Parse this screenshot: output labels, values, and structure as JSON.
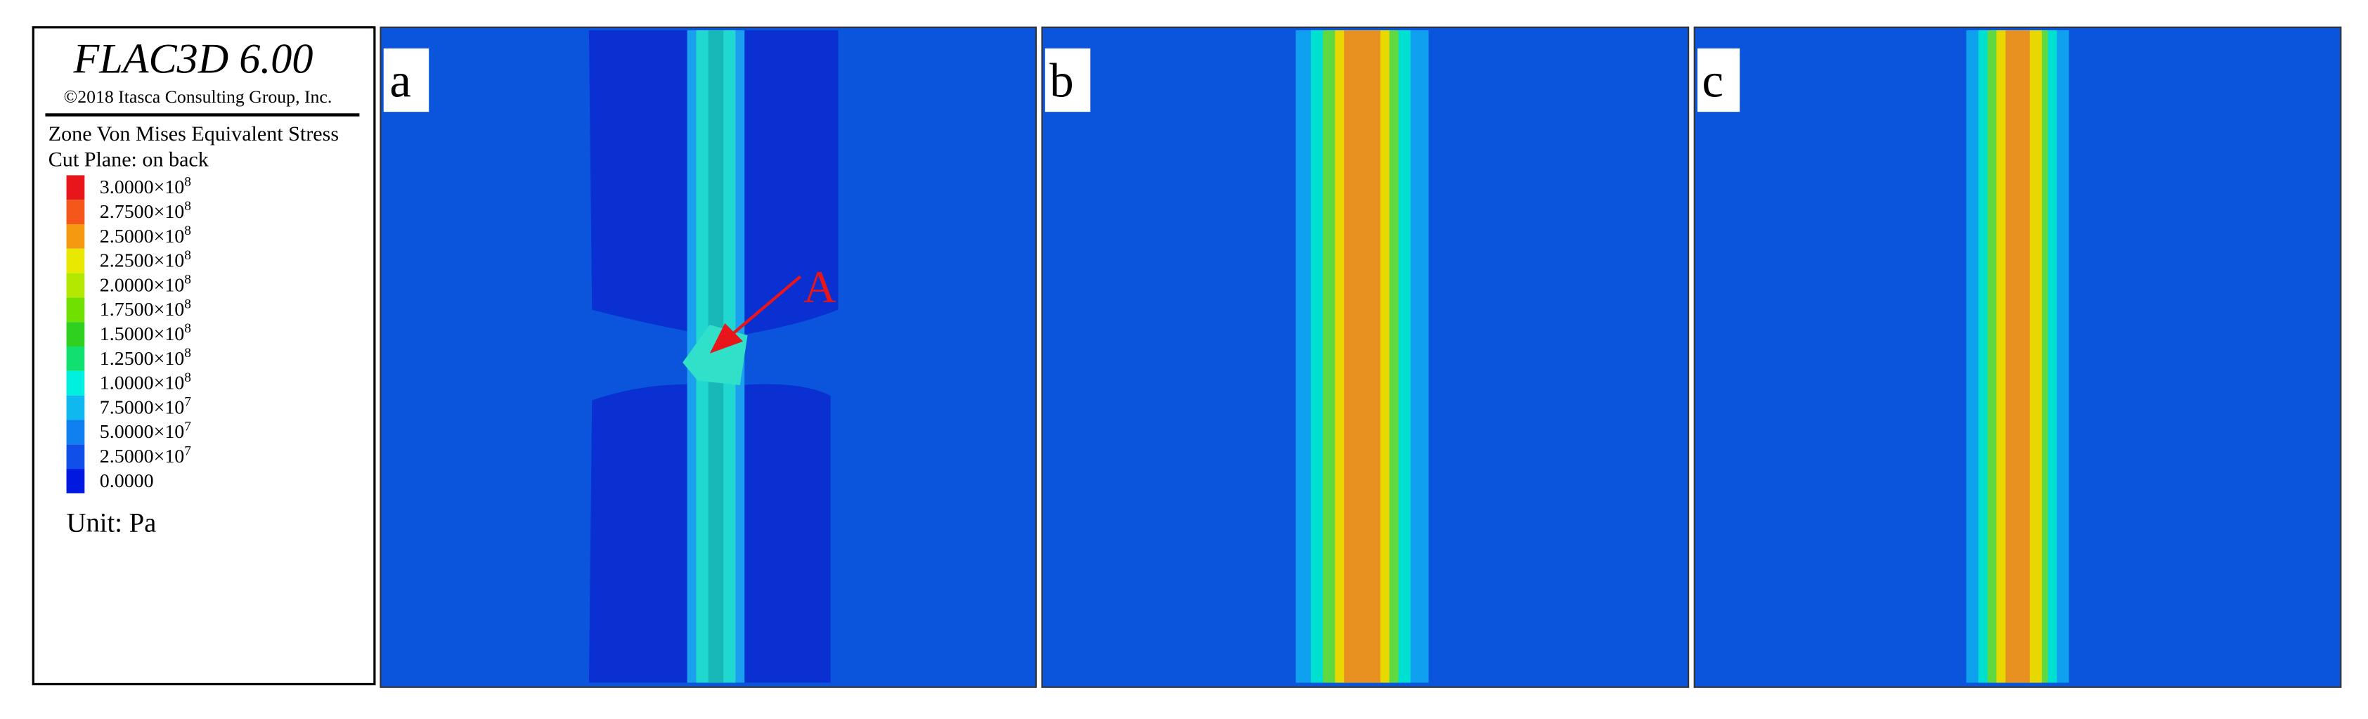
{
  "legend": {
    "title": "FLAC3D 6.00",
    "copyright": "©2018 Itasca Consulting Group, Inc.",
    "quantity": "Zone Von Mises Equivalent Stress",
    "cut_plane": "Cut Plane: on back",
    "items": [
      {
        "color": "#e8161a",
        "text": "3.0000×10",
        "sup": "8"
      },
      {
        "color": "#f5561a",
        "text": "2.7500×10",
        "sup": "8"
      },
      {
        "color": "#f59a10",
        "text": "2.5000×10",
        "sup": "8"
      },
      {
        "color": "#e8e800",
        "text": "2.2500×10",
        "sup": "8"
      },
      {
        "color": "#b5e800",
        "text": "2.0000×10",
        "sup": "8"
      },
      {
        "color": "#70e000",
        "text": "1.7500×10",
        "sup": "8"
      },
      {
        "color": "#30d020",
        "text": "1.5000×10",
        "sup": "8"
      },
      {
        "color": "#10e070",
        "text": "1.2500×10",
        "sup": "8"
      },
      {
        "color": "#00f0e0",
        "text": "1.0000×10",
        "sup": "8"
      },
      {
        "color": "#10b8f0",
        "text": "7.5000×10",
        "sup": "7"
      },
      {
        "color": "#1080f0",
        "text": "5.0000×10",
        "sup": "7"
      },
      {
        "color": "#1050e8",
        "text": "2.5000×10",
        "sup": "7"
      },
      {
        "color": "#0018e0",
        "text": "0.0000"
      }
    ],
    "unit": "Unit: Pa"
  },
  "panels": [
    {
      "label": "a",
      "annotation": "A"
    },
    {
      "label": "b"
    },
    {
      "label": "c"
    }
  ]
}
